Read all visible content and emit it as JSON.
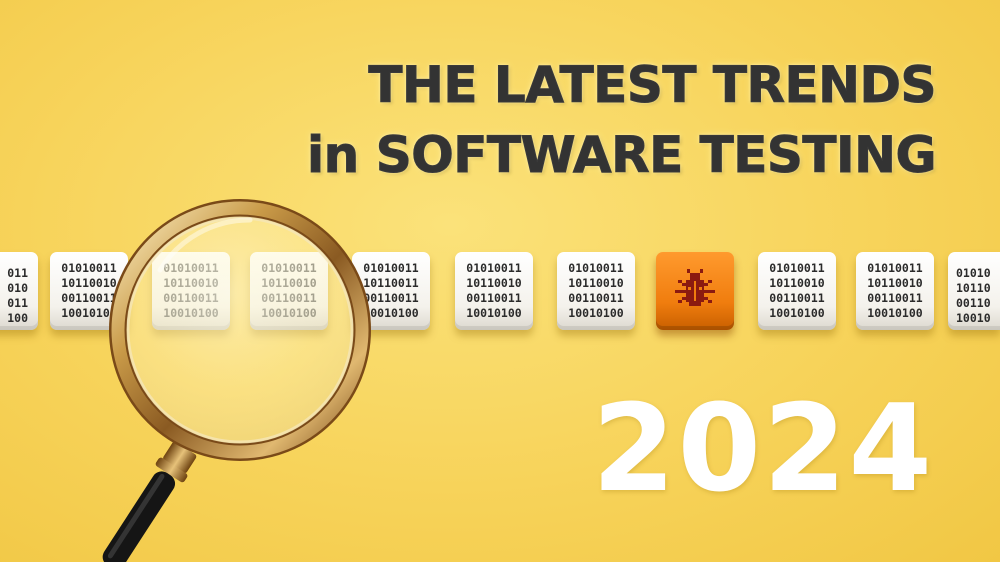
{
  "headline": {
    "line1": "THE LATEST TRENDS",
    "line2": "in SOFTWARE TESTING"
  },
  "year": "2024",
  "cubes": [
    {
      "lines": [
        "011",
        "010",
        "011",
        "100"
      ]
    },
    {
      "lines": [
        "01010011",
        "10110010",
        "00110011",
        "10010100"
      ]
    },
    {
      "lines": [
        "01010011",
        "10110010",
        "00110011",
        "10010100"
      ]
    },
    {
      "lines": [
        "01010011",
        "10110010",
        "00110011",
        "10010100"
      ]
    },
    {
      "lines": [
        "01010011",
        "10110011",
        "00110011",
        "10010100"
      ]
    },
    {
      "lines": [
        "01010011",
        "10110010",
        "00110011",
        "10010100"
      ]
    },
    {
      "lines": [
        "01010011",
        "10110010",
        "00110011",
        "10010100"
      ]
    },
    {
      "lines": []
    },
    {
      "lines": [
        "01010011",
        "10110010",
        "00110011",
        "10010100"
      ]
    },
    {
      "lines": [
        "01010011",
        "10110010",
        "00110011",
        "10010100"
      ]
    },
    {
      "lines": [
        "01010",
        "10110",
        "00110",
        "10010"
      ]
    }
  ],
  "icons": {
    "bug": "bug-icon",
    "magnifier": "magnifying-glass-icon"
  },
  "colors": {
    "background": "#f7d35a",
    "headline": "#333333",
    "year": "#ffffff",
    "bug_cube": "#f07d0e",
    "bug": "#8b1a10"
  }
}
